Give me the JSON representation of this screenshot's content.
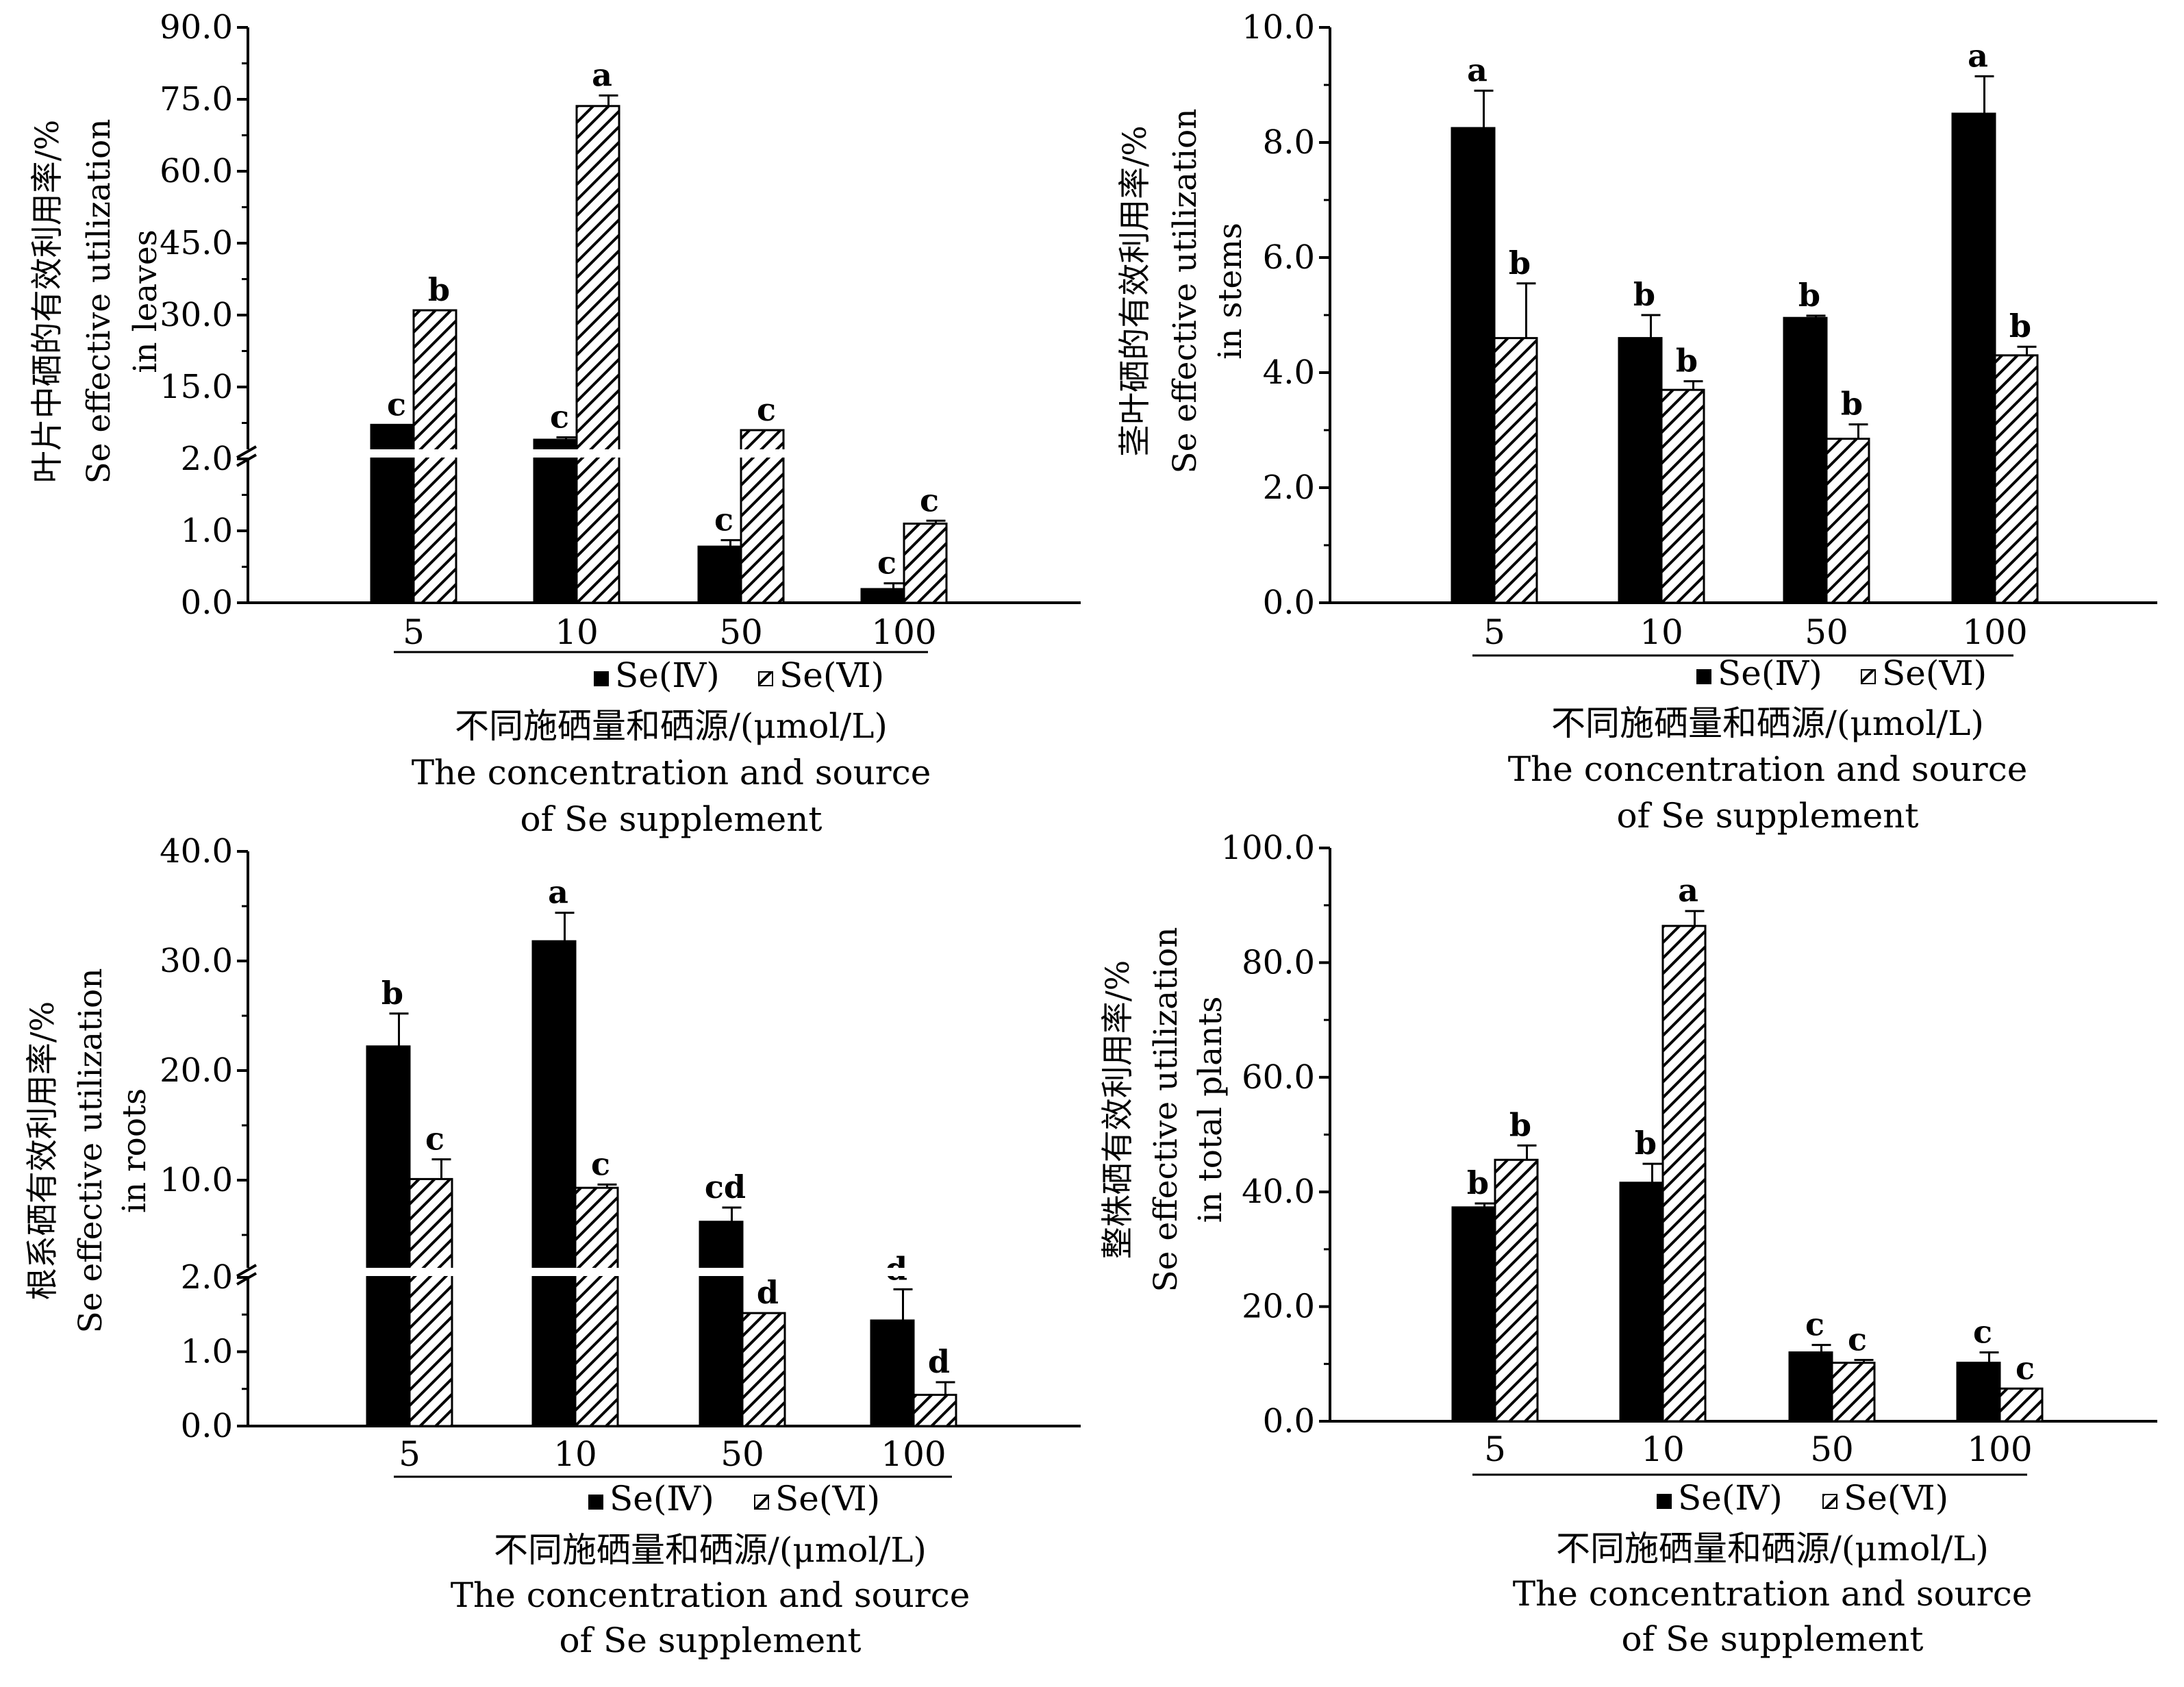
{
  "colors": {
    "se_iv_fill": "#000000",
    "se_vi_pattern": "diagonal-hatch",
    "background": "#ffffff"
  },
  "chart_data": [
    {
      "type": "bar",
      "categories": [
        "5",
        "10",
        "50",
        "100"
      ],
      "series": [
        {
          "name": "Se(Ⅳ)",
          "values": [
            7.1,
            4.0,
            0.78,
            0.19
          ],
          "errors": [
            0,
            0.5,
            0.09,
            0.08
          ],
          "sig": [
            "c",
            "c",
            "c",
            "c"
          ]
        },
        {
          "name": "Se(Ⅵ)",
          "values": [
            31.0,
            73.6,
            6.0,
            1.1
          ],
          "errors": [
            0,
            2.2,
            0,
            0.04
          ],
          "sig": [
            "b",
            "a",
            "c",
            "c"
          ]
        }
      ],
      "ylabel_cn": "叶片中硒的有效利用率/%",
      "ylabel_en": [
        "Se effective utilization",
        "in leaves"
      ],
      "broken_axis": true,
      "yticks_lower": [
        "0.0",
        "1.0",
        "2.0"
      ],
      "yticks_upper": [
        "15.0",
        "30.0",
        "45.0",
        "60.0",
        "75.0",
        "90.0"
      ],
      "ylim_lower": [
        0,
        2
      ],
      "ylim_upper": [
        2,
        90
      ],
      "legend": [
        "Se(Ⅳ)",
        "Se(Ⅵ)"
      ],
      "xlabel_cn": "不同施硒量和硒源/(μmol/L)",
      "xlabel_en": [
        "The concentration and source",
        "of Se supplement"
      ]
    },
    {
      "type": "bar",
      "categories": [
        "5",
        "10",
        "50",
        "100"
      ],
      "series": [
        {
          "name": "Se(Ⅳ)",
          "values": [
            8.25,
            4.6,
            4.95,
            8.5
          ],
          "errors": [
            0.65,
            0.4,
            0.04,
            0.65
          ],
          "sig": [
            "a",
            "b",
            "b",
            "a"
          ]
        },
        {
          "name": "Se(Ⅵ)",
          "values": [
            4.6,
            3.7,
            2.85,
            4.3
          ],
          "errors": [
            0.95,
            0.15,
            0.25,
            0.15
          ],
          "sig": [
            "b",
            "b",
            "b",
            "b"
          ]
        }
      ],
      "ylabel_cn": "茎叶硒的有效利用率/%",
      "ylabel_en": [
        "Se effective utilization",
        "in stems"
      ],
      "broken_axis": false,
      "yticks": [
        "0.0",
        "2.0",
        "4.0",
        "6.0",
        "8.0",
        "10.0"
      ],
      "ylim": [
        0,
        10
      ],
      "legend": [
        "Se(Ⅳ)",
        "Se(Ⅵ)"
      ],
      "xlabel_cn": "不同施硒量和硒源/(μmol/L)",
      "xlabel_en": [
        "The concentration and source",
        "of Se supplement"
      ]
    },
    {
      "type": "bar",
      "categories": [
        "5",
        "10",
        "50",
        "100"
      ],
      "series": [
        {
          "name": "Se(Ⅳ)",
          "values": [
            22.2,
            31.8,
            6.2,
            1.42
          ],
          "errors": [
            3.0,
            2.6,
            1.3,
            0.42
          ],
          "sig": [
            "b",
            "a",
            "cd",
            "d"
          ]
        },
        {
          "name": "Se(Ⅵ)",
          "values": [
            10.1,
            9.3,
            1.52,
            0.42
          ],
          "errors": [
            1.8,
            0.3,
            0,
            0.17
          ],
          "sig": [
            "c",
            "c",
            "d",
            "d"
          ]
        }
      ],
      "ylabel_cn": "根系硒有效利用率/%",
      "ylabel_en": [
        "Se effective utilization",
        "in roots"
      ],
      "broken_axis": true,
      "yticks_lower": [
        "0.0",
        "1.0",
        "2.0"
      ],
      "yticks_upper": [
        "10.0",
        "20.0",
        "30.0",
        "40.0"
      ],
      "ylim_lower": [
        0,
        2
      ],
      "ylim_upper": [
        2,
        40
      ],
      "legend": [
        "Se(Ⅳ)",
        "Se(Ⅵ)"
      ],
      "xlabel_cn": "不同施硒量和硒源/(μmol/L)",
      "xlabel_en": [
        "The concentration and source",
        "of Se supplement"
      ]
    },
    {
      "type": "bar",
      "categories": [
        "5",
        "10",
        "50",
        "100"
      ],
      "series": [
        {
          "name": "Se(Ⅳ)",
          "values": [
            37.3,
            41.6,
            12.0,
            10.2
          ],
          "errors": [
            0.7,
            3.3,
            1.3,
            1.8
          ],
          "sig": [
            "b",
            "b",
            "c",
            "c"
          ]
        },
        {
          "name": "Se(Ⅵ)",
          "values": [
            45.6,
            86.4,
            10.2,
            5.7
          ],
          "errors": [
            2.5,
            2.6,
            0.5,
            0
          ],
          "sig": [
            "b",
            "a",
            "c",
            "c"
          ]
        }
      ],
      "ylabel_cn": "整株硒有效利用率/%",
      "ylabel_en": [
        "Se effective utilization",
        "in total plants"
      ],
      "broken_axis": false,
      "yticks": [
        "0.0",
        "20.0",
        "40.0",
        "60.0",
        "80.0",
        "100.0"
      ],
      "ylim": [
        0,
        100
      ],
      "legend": [
        "Se(Ⅳ)",
        "Se(Ⅵ)"
      ],
      "xlabel_cn": "不同施硒量和硒源/(μmol/L)",
      "xlabel_en": [
        "The concentration and source",
        "of Se supplement"
      ]
    }
  ]
}
